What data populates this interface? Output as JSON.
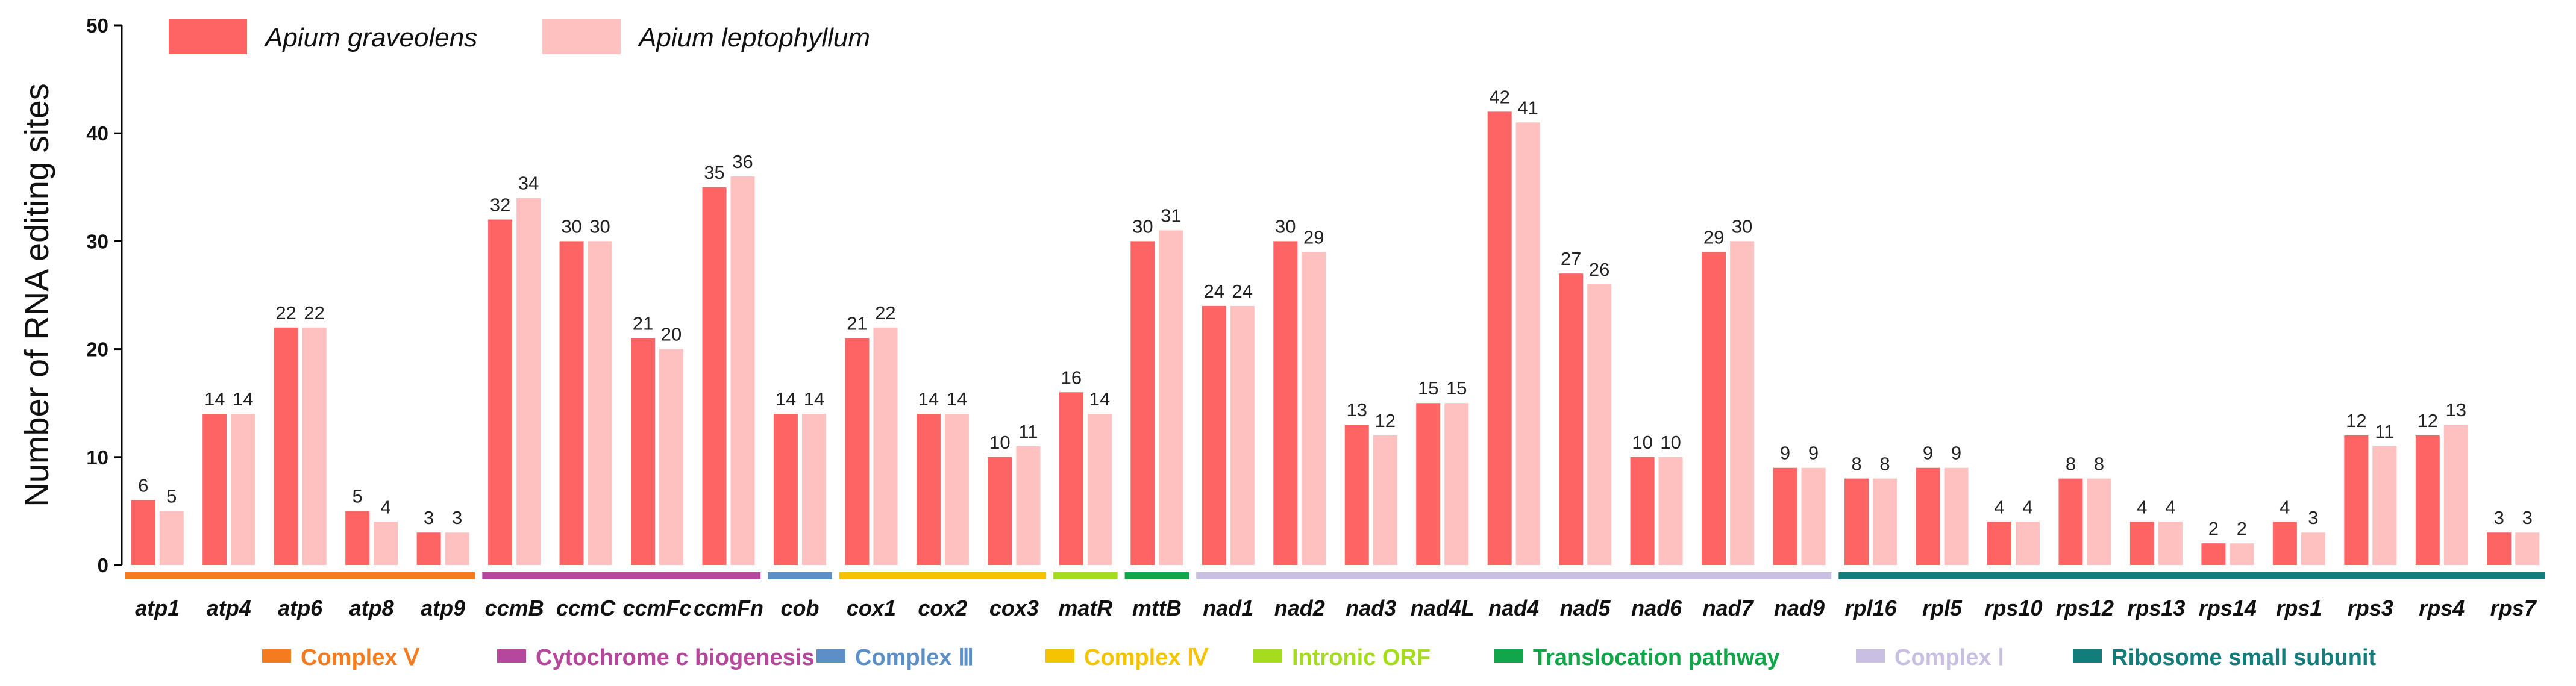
{
  "chart_data": {
    "type": "bar",
    "ylabel": "Number of RNA editing sites",
    "xlabel": "",
    "ylim": [
      0,
      50
    ],
    "yticks": [
      "0",
      "10",
      "20",
      "30",
      "40",
      "50"
    ],
    "categories": [
      "atp1",
      "atp4",
      "atp6",
      "atp8",
      "atp9",
      "ccmB",
      "ccmC",
      "ccmFc",
      "ccmFn",
      "cob",
      "cox1",
      "cox2",
      "cox3",
      "matR",
      "mttB",
      "nad1",
      "nad2",
      "nad3",
      "nad4L",
      "nad4",
      "nad5",
      "nad6",
      "nad7",
      "nad9",
      "rpl16",
      "rpl5",
      "rps10",
      "rps12",
      "rps13",
      "rps14",
      "rps1",
      "rps3",
      "rps4",
      "rps7"
    ],
    "series": [
      {
        "name": "Apium graveolens",
        "color": "#ff6464",
        "values": [
          6,
          14,
          22,
          5,
          3,
          32,
          30,
          21,
          35,
          14,
          21,
          14,
          10,
          16,
          30,
          24,
          30,
          13,
          15,
          42,
          27,
          10,
          29,
          9,
          8,
          9,
          4,
          8,
          4,
          2,
          4,
          12,
          12,
          3
        ]
      },
      {
        "name": "Apium leptophyllum",
        "color": "#ffc0c0",
        "values": [
          5,
          14,
          22,
          4,
          3,
          34,
          30,
          20,
          36,
          14,
          22,
          14,
          11,
          14,
          31,
          24,
          29,
          12,
          15,
          41,
          26,
          10,
          30,
          9,
          8,
          9,
          4,
          8,
          4,
          2,
          3,
          11,
          13,
          3
        ]
      }
    ],
    "legend_position": "top-left",
    "groups": [
      {
        "label": "Complex Ⅴ",
        "color": "#f47c20",
        "from": 0,
        "to": 4
      },
      {
        "label": "Cytochrome c biogenesis",
        "color": "#b5489c",
        "from": 5,
        "to": 8
      },
      {
        "label": "Complex Ⅲ",
        "color": "#5b8fc6",
        "from": 9,
        "to": 9
      },
      {
        "label": "Complex Ⅳ",
        "color": "#f5c400",
        "from": 10,
        "to": 12
      },
      {
        "label": "Intronic ORF",
        "color": "#a6dc1e",
        "from": 13,
        "to": 13
      },
      {
        "label": "Translocation pathway",
        "color": "#12a64b",
        "from": 14,
        "to": 14
      },
      {
        "label": "Complex Ⅰ",
        "color": "#c8bfe2",
        "from": 15,
        "to": 23
      },
      {
        "label": "Ribosome small subunit",
        "color": "#127d7a",
        "from": 24,
        "to": 33
      }
    ]
  }
}
